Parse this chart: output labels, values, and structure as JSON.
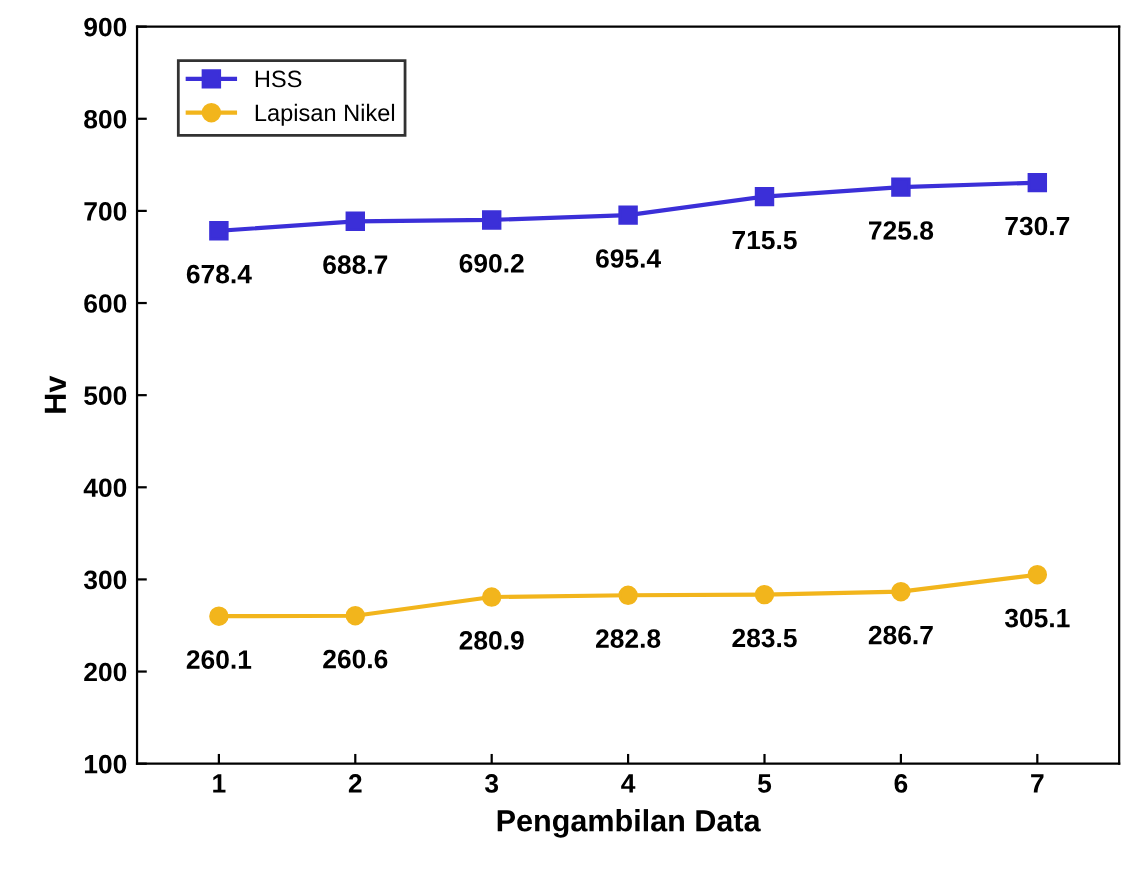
{
  "chart_data": {
    "type": "line",
    "xlabel": "Pengambilan Data",
    "ylabel": "Hv",
    "x": [
      1,
      2,
      3,
      4,
      5,
      6,
      7
    ],
    "series": [
      {
        "name": "HSS",
        "color": "#3b2fd8",
        "marker": "square",
        "values": [
          678.4,
          688.7,
          690.2,
          695.4,
          715.5,
          725.8,
          730.7
        ]
      },
      {
        "name": "Lapisan Nikel",
        "color": "#f2b51c",
        "marker": "circle",
        "values": [
          260.1,
          260.6,
          280.9,
          282.8,
          283.5,
          286.7,
          305.1
        ]
      }
    ],
    "xlim": [
      0.4,
      7.6
    ],
    "ylim": [
      100,
      900
    ],
    "xticks": [
      1,
      2,
      3,
      4,
      5,
      6,
      7
    ],
    "yticks": [
      100,
      200,
      300,
      400,
      500,
      600,
      700,
      800,
      900
    ],
    "data_labels": true,
    "legend": "top left",
    "grid": false,
    "line_style": "solid"
  }
}
